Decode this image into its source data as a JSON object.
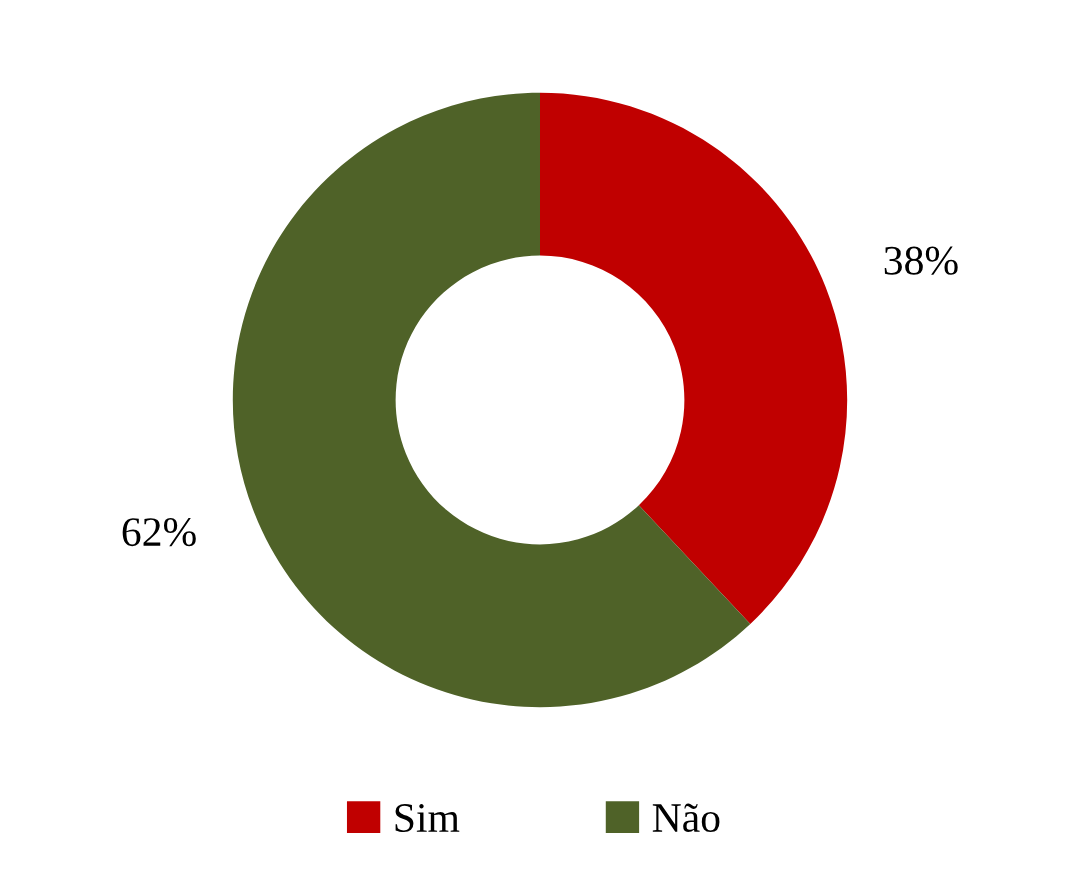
{
  "chart_data": {
    "type": "donut",
    "categories": [
      "Sim",
      "Não"
    ],
    "values": [
      38,
      62
    ],
    "colors": [
      "#c00000",
      "#4f6228"
    ],
    "value_labels": [
      "38%",
      "62%"
    ],
    "legend": "bottom"
  }
}
